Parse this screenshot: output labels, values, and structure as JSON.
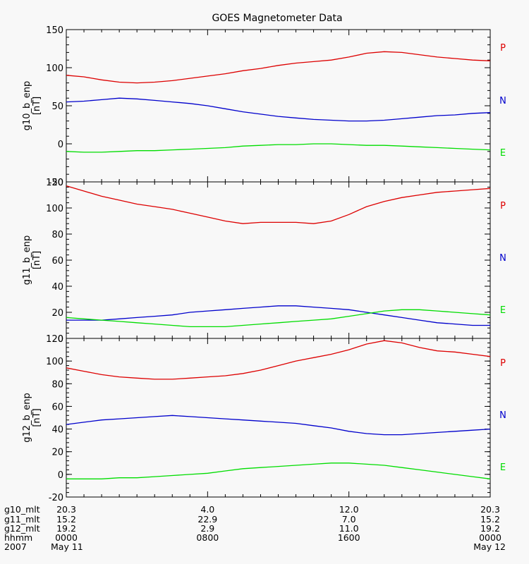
{
  "chart_data": {
    "type": "line",
    "title": "GOES Magnetometer Data",
    "x_hours_range": [
      0,
      24
    ],
    "colors": {
      "P": "#dd0000",
      "N": "#0000cc",
      "E": "#00dd00"
    },
    "panels": [
      {
        "ylabel": "g10_b_enp",
        "unit": "[nT]",
        "ylim": [
          -50,
          150
        ],
        "yticks": [
          -50,
          0,
          50,
          100,
          150
        ],
        "legend": [
          "P",
          "N",
          "E"
        ],
        "series": [
          {
            "name": "P",
            "x": [
              0,
              1,
              2,
              3,
              4,
              5,
              6,
              7,
              8,
              9,
              10,
              11,
              12,
              13,
              14,
              15,
              16,
              17,
              18,
              19,
              20,
              21,
              22,
              23,
              24
            ],
            "values": [
              90,
              88,
              84,
              81,
              80,
              81,
              83,
              86,
              89,
              92,
              96,
              99,
              103,
              106,
              108,
              110,
              114,
              119,
              121,
              120,
              117,
              114,
              112,
              110,
              109
            ]
          },
          {
            "name": "N",
            "x": [
              0,
              1,
              2,
              3,
              4,
              5,
              6,
              7,
              8,
              9,
              10,
              11,
              12,
              13,
              14,
              15,
              16,
              17,
              18,
              19,
              20,
              21,
              22,
              23,
              24
            ],
            "values": [
              55,
              56,
              58,
              60,
              59,
              57,
              55,
              53,
              50,
              46,
              42,
              39,
              36,
              34,
              32,
              31,
              30,
              30,
              31,
              33,
              35,
              37,
              38,
              40,
              41
            ]
          },
          {
            "name": "E",
            "x": [
              0,
              1,
              2,
              3,
              4,
              5,
              6,
              7,
              8,
              9,
              10,
              11,
              12,
              13,
              14,
              15,
              16,
              17,
              18,
              19,
              20,
              21,
              22,
              23,
              24
            ],
            "values": [
              -10,
              -11,
              -11,
              -10,
              -9,
              -9,
              -8,
              -7,
              -6,
              -5,
              -3,
              -2,
              -1,
              -1,
              0,
              0,
              -1,
              -2,
              -2,
              -3,
              -4,
              -5,
              -6,
              -7,
              -8
            ]
          }
        ]
      },
      {
        "ylabel": "g11_b_enp",
        "unit": "[nT]",
        "ylim": [
          0,
          120
        ],
        "yticks": [
          0,
          20,
          40,
          60,
          80,
          100,
          120
        ],
        "legend": [
          "P",
          "N",
          "E"
        ],
        "series": [
          {
            "name": "P",
            "x": [
              0,
              1,
              2,
              3,
              4,
              5,
              6,
              7,
              8,
              9,
              10,
              11,
              12,
              13,
              14,
              15,
              16,
              17,
              18,
              19,
              20,
              21,
              22,
              23,
              24
            ],
            "values": [
              117,
              113,
              109,
              106,
              103,
              101,
              99,
              96,
              93,
              90,
              88,
              89,
              89,
              89,
              88,
              90,
              95,
              101,
              105,
              108,
              110,
              112,
              113,
              114,
              115
            ]
          },
          {
            "name": "N",
            "x": [
              0,
              1,
              2,
              3,
              4,
              5,
              6,
              7,
              8,
              9,
              10,
              11,
              12,
              13,
              14,
              15,
              16,
              17,
              18,
              19,
              20,
              21,
              22,
              23,
              24
            ],
            "values": [
              14,
              14,
              14,
              15,
              16,
              17,
              18,
              20,
              21,
              22,
              23,
              24,
              25,
              25,
              24,
              23,
              22,
              20,
              18,
              16,
              14,
              12,
              11,
              10,
              10
            ]
          },
          {
            "name": "E",
            "x": [
              0,
              1,
              2,
              3,
              4,
              5,
              6,
              7,
              8,
              9,
              10,
              11,
              12,
              13,
              14,
              15,
              16,
              17,
              18,
              19,
              20,
              21,
              22,
              23,
              24
            ],
            "values": [
              16,
              15,
              14,
              13,
              12,
              11,
              10,
              9,
              9,
              9,
              10,
              11,
              12,
              13,
              14,
              15,
              17,
              19,
              21,
              22,
              22,
              21,
              20,
              19,
              18
            ]
          }
        ]
      },
      {
        "ylabel": "g12_b_enp",
        "unit": "[nT]",
        "ylim": [
          -20,
          120
        ],
        "yticks": [
          -20,
          0,
          20,
          40,
          60,
          80,
          100,
          120
        ],
        "legend": [
          "P",
          "N",
          "E"
        ],
        "series": [
          {
            "name": "P",
            "x": [
              0,
              1,
              2,
              3,
              4,
              5,
              6,
              7,
              8,
              9,
              10,
              11,
              12,
              13,
              14,
              15,
              16,
              17,
              18,
              19,
              20,
              21,
              22,
              23,
              24
            ],
            "values": [
              94,
              91,
              88,
              86,
              85,
              84,
              84,
              85,
              86,
              87,
              89,
              92,
              96,
              100,
              103,
              106,
              110,
              115,
              118,
              116,
              112,
              109,
              108,
              106,
              104
            ]
          },
          {
            "name": "N",
            "x": [
              0,
              1,
              2,
              3,
              4,
              5,
              6,
              7,
              8,
              9,
              10,
              11,
              12,
              13,
              14,
              15,
              16,
              17,
              18,
              19,
              20,
              21,
              22,
              23,
              24
            ],
            "values": [
              44,
              46,
              48,
              49,
              50,
              51,
              52,
              51,
              50,
              49,
              48,
              47,
              46,
              45,
              43,
              41,
              38,
              36,
              35,
              35,
              36,
              37,
              38,
              39,
              40
            ]
          },
          {
            "name": "E",
            "x": [
              0,
              1,
              2,
              3,
              4,
              5,
              6,
              7,
              8,
              9,
              10,
              11,
              12,
              13,
              14,
              15,
              16,
              17,
              18,
              19,
              20,
              21,
              22,
              23,
              24
            ],
            "values": [
              -4,
              -4,
              -4,
              -3,
              -3,
              -2,
              -1,
              0,
              1,
              3,
              5,
              6,
              7,
              8,
              9,
              10,
              10,
              9,
              8,
              6,
              4,
              2,
              0,
              -2,
              -4
            ]
          }
        ]
      }
    ],
    "x_ticks": [
      {
        "row": "g10_mlt",
        "values": [
          "20.3",
          "4.0",
          "12.0",
          "20.3"
        ]
      },
      {
        "row": "g11_mlt",
        "values": [
          "15.2",
          "22.9",
          "7.0",
          "15.2"
        ]
      },
      {
        "row": "g12_mlt",
        "values": [
          "19.2",
          "2.9",
          "11.0",
          "19.2"
        ]
      },
      {
        "row": "hhmm",
        "values": [
          "0000",
          "0800",
          "1600",
          "0000"
        ]
      },
      {
        "row": "2007",
        "values": [
          "May 11",
          "",
          "",
          "May 12"
        ]
      }
    ],
    "x_tick_hours": [
      0,
      8,
      16,
      24
    ]
  }
}
